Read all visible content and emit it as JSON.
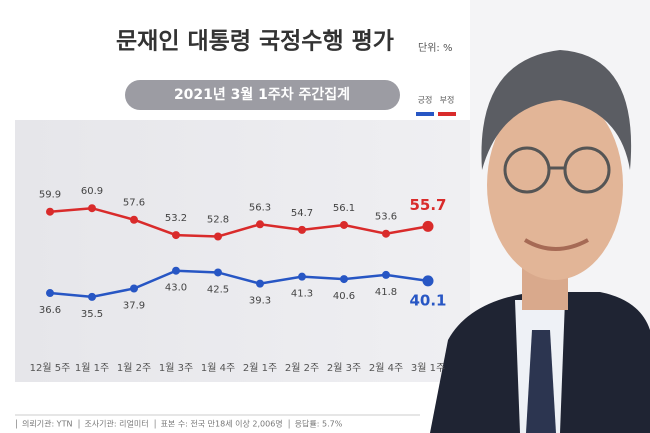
{
  "chart_data": {
    "type": "line",
    "title": "문재인 대통령 국정수행 평가",
    "unit": "단위: %",
    "subtitle": "2021년 3월 1주차 주간집계",
    "categories": [
      "12월 5주",
      "1월 1주",
      "1월 2주",
      "1월 3주",
      "1월 4주",
      "2월 1주",
      "2월 2주",
      "2월 3주",
      "2월 4주",
      "3월 1주"
    ],
    "series": [
      {
        "name": "긍정",
        "color": "#2756c4",
        "values": [
          36.6,
          35.5,
          37.9,
          43.0,
          42.5,
          39.3,
          41.3,
          40.6,
          41.8,
          40.1
        ],
        "value_labels": [
          "36.6",
          "35.5",
          "37.9",
          "43.0",
          "42.5",
          "39.3",
          "41.3",
          "40.6",
          "41.8",
          "40.1"
        ]
      },
      {
        "name": "부정",
        "color": "#d92b2b",
        "values": [
          59.9,
          60.9,
          57.6,
          53.2,
          52.8,
          56.3,
          54.7,
          56.1,
          53.6,
          55.7
        ]
      }
    ],
    "ylim": [
      20,
      75
    ],
    "source_notes": [
      "의뢰기관: YTN",
      "조사기관: 리얼미터",
      "표본 수: 전국 만18세 이상 2,006명",
      "응답률: 5.7%"
    ]
  }
}
